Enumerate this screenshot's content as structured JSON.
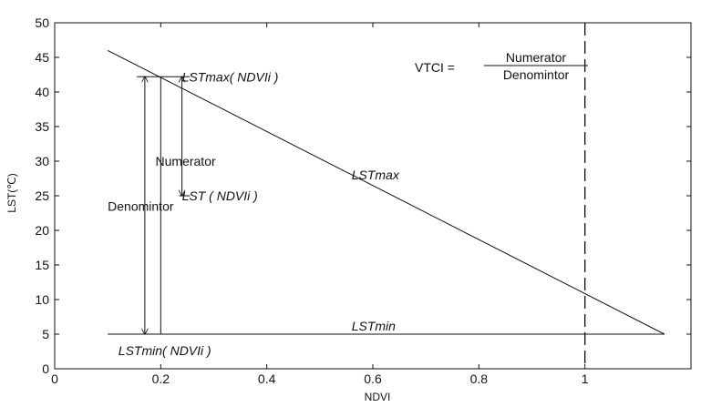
{
  "chart_data": {
    "type": "line",
    "title": "",
    "xlabel": "NDVI",
    "ylabel": "LST(℃)",
    "xlim": [
      0,
      1.2
    ],
    "ylim": [
      0,
      50
    ],
    "x_ticks": [
      0,
      0.2,
      0.4,
      0.6,
      0.8,
      1
    ],
    "x_tick_labels": [
      "0",
      "0.2",
      "0.4",
      "0.6",
      "0.8",
      "1"
    ],
    "y_ticks": [
      0,
      5,
      10,
      15,
      20,
      25,
      30,
      35,
      40,
      45,
      50
    ],
    "y_tick_labels": [
      "0",
      "5",
      "10",
      "15",
      "20",
      "25",
      "30",
      "35",
      "40",
      "45",
      "50"
    ],
    "grid": false,
    "series": [
      {
        "name": "LSTmax",
        "x": [
          0.1,
          1.15
        ],
        "y": [
          46,
          5
        ]
      },
      {
        "name": "LSTmin",
        "x": [
          0.1,
          1.15
        ],
        "y": [
          5,
          5
        ]
      }
    ],
    "reference_lines": [
      {
        "orientation": "vertical",
        "x": 1,
        "style": "dashed"
      }
    ],
    "arrows": [
      {
        "name": "Denomintor",
        "x": 0.17,
        "y_from": 5,
        "y_to": 42.2
      },
      {
        "name": "Numerator",
        "x": 0.24,
        "y_from": 25,
        "y_to": 42.2
      }
    ],
    "annotations": [
      {
        "id": "lstmax_ndvii",
        "text": "LSTmax( NDVIi )",
        "x": 0.24,
        "y": 42.2
      },
      {
        "id": "numerator",
        "text": "Numerator",
        "x": 0.19,
        "y": 30
      },
      {
        "id": "lst_ndvii",
        "text": "LST ( NDVIi )",
        "x": 0.24,
        "y": 25
      },
      {
        "id": "denominator",
        "text": "Denomintor",
        "x": 0.1,
        "y": 23.5
      },
      {
        "id": "lstmax",
        "text": "LSTmax",
        "x": 0.56,
        "y": 28
      },
      {
        "id": "lstmin",
        "text": "LSTmin",
        "x": 0.56,
        "y": 6.2
      },
      {
        "id": "lstmin_ndvii",
        "text": "LSTmin( NDVIi )",
        "x": 0.12,
        "y": 2.6
      }
    ],
    "formula": {
      "lhs": "VTCI =",
      "numerator": "Numerator",
      "denominator": "Denomintor"
    }
  }
}
